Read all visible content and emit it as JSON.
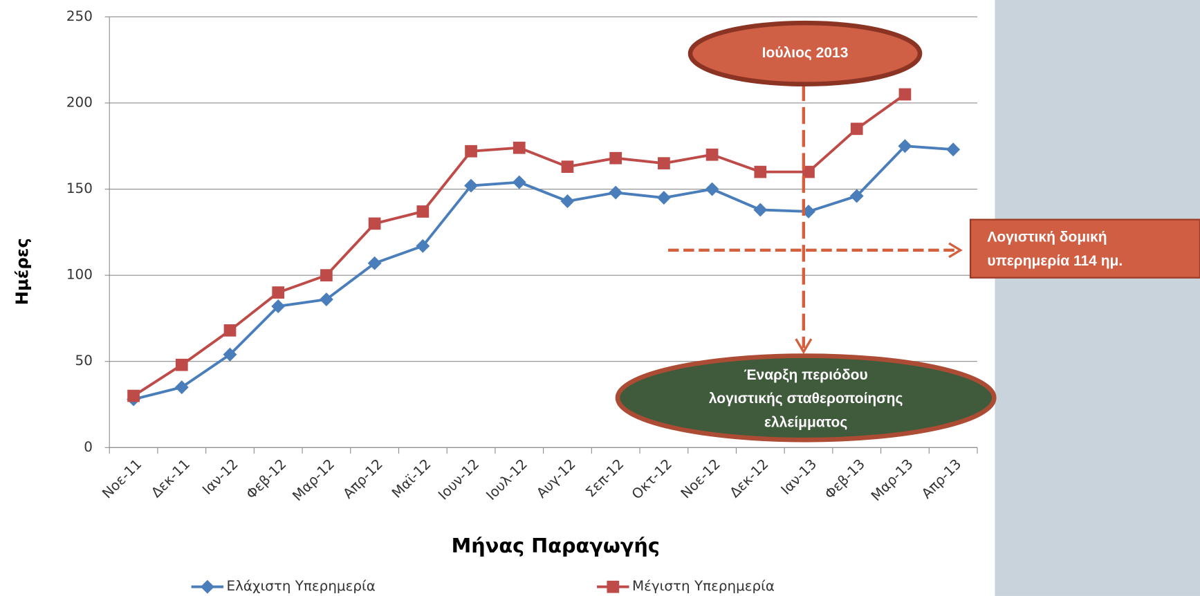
{
  "chart_data": {
    "type": "line",
    "x_label": "Μήνας Παραγωγής",
    "y_label": "Ημέρες",
    "categories": [
      "Νοε-11",
      "Δεκ-11",
      "Ιαν-12",
      "Φεβ-12",
      "Μαρ-12",
      "Απρ-12",
      "Μαϊ-12",
      "Ιουν-12",
      "Ιουλ-12",
      "Αυγ-12",
      "Σεπ-12",
      "Οκτ-12",
      "Νοε-12",
      "Δεκ-12",
      "Ιαν-13",
      "Φεβ-13",
      "Μαρ-13",
      "Απρ-13"
    ],
    "series": [
      {
        "name": "Ελάχιστη Υπερημερία",
        "color": "#4a7ebb",
        "marker": "diamond",
        "values": [
          28,
          35,
          54,
          82,
          86,
          107,
          117,
          152,
          154,
          143,
          148,
          145,
          150,
          138,
          137,
          146,
          175,
          173
        ]
      },
      {
        "name": "Μέγιστη Υπερημερία",
        "color": "#be4b48",
        "marker": "square",
        "values": [
          30,
          48,
          68,
          90,
          100,
          130,
          137,
          172,
          174,
          163,
          168,
          165,
          170,
          160,
          160,
          185,
          205,
          null
        ]
      }
    ],
    "ylim": [
      0,
      250
    ],
    "yticks": [
      0,
      50,
      100,
      150,
      200,
      250
    ],
    "grid": true,
    "legend": "bottom",
    "annotations": [
      {
        "lines": [
          "Ιούλιος 2013"
        ]
      },
      {
        "lines": [
          "Λογιστική δομική",
          "υπερημερία 114 ημ."
        ]
      },
      {
        "lines": [
          "Έναρξη περιόδου",
          "λογιστικής σταθεροποίησης",
          "ελλείμματος"
        ]
      }
    ]
  }
}
